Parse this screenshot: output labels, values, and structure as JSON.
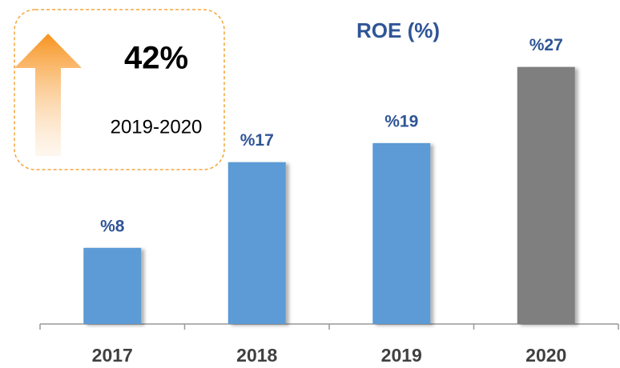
{
  "chart_data": {
    "type": "bar",
    "title": "ROE (%)",
    "categories": [
      "2017",
      "2018",
      "2019",
      "2020"
    ],
    "values": [
      8,
      17,
      19,
      27
    ],
    "value_labels": [
      "%8",
      "%17",
      "%19",
      "%27"
    ],
    "colors": [
      "#5b9bd5",
      "#5b9bd5",
      "#5b9bd5",
      "#7f7f7f"
    ],
    "ylim": [
      0,
      30
    ],
    "annotations": [
      "42%",
      "2019-2020"
    ]
  }
}
